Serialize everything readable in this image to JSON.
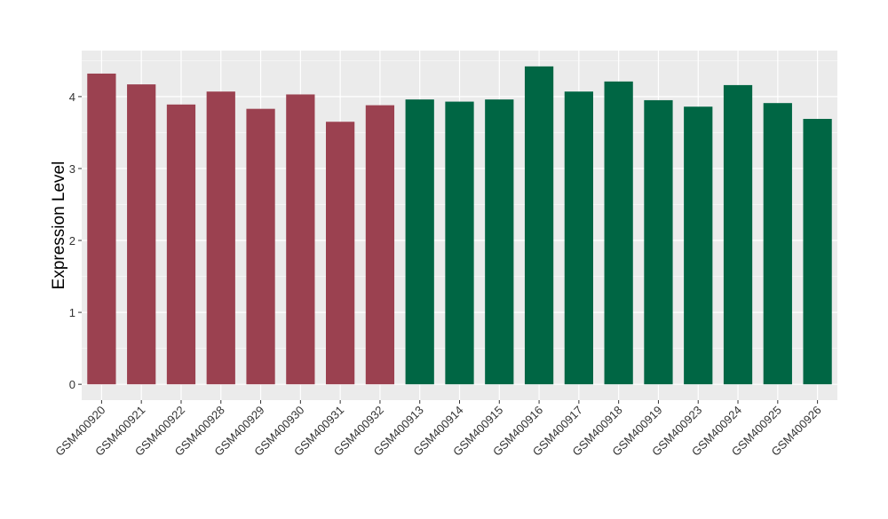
{
  "chart_data": {
    "type": "bar",
    "title": "",
    "xlabel": "",
    "ylabel": "Expression Level",
    "ylim": [
      -0.22,
      4.64
    ],
    "yticks": [
      0,
      1,
      2,
      3,
      4
    ],
    "grid": true,
    "categories": [
      "GSM400920",
      "GSM400921",
      "GSM400922",
      "GSM400928",
      "GSM400929",
      "GSM400930",
      "GSM400931",
      "GSM400932",
      "GSM400913",
      "GSM400914",
      "GSM400915",
      "GSM400916",
      "GSM400917",
      "GSM400918",
      "GSM400919",
      "GSM400923",
      "GSM400924",
      "GSM400925",
      "GSM400926"
    ],
    "values": [
      4.32,
      4.17,
      3.89,
      4.07,
      3.83,
      4.03,
      3.65,
      3.88,
      3.96,
      3.93,
      3.96,
      4.42,
      4.07,
      4.21,
      3.95,
      3.86,
      4.16,
      3.91,
      3.69
    ],
    "groups": [
      0,
      0,
      0,
      0,
      0,
      0,
      0,
      0,
      1,
      1,
      1,
      1,
      1,
      1,
      1,
      1,
      1,
      1,
      1
    ],
    "colors": [
      "#9b4150",
      "#006644"
    ],
    "panel_bg": "#ebebeb"
  }
}
